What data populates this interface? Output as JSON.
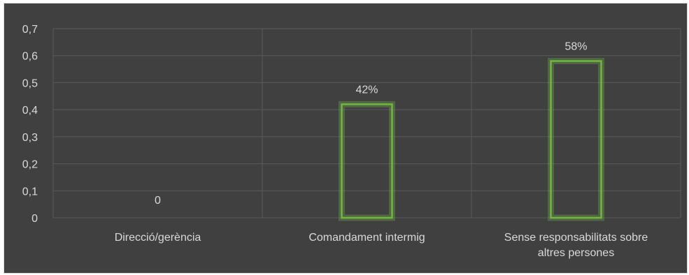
{
  "chart_data": {
    "type": "bar",
    "categories": [
      "Direcció/gerència",
      "Comandament intermig",
      "Sense responsabilitats sobre altres persones"
    ],
    "category_label_lines": [
      [
        "Direcció/gerència"
      ],
      [
        "Comandament intermig"
      ],
      [
        "Sense responsabilitats sobre",
        "altres persones"
      ]
    ],
    "values": [
      0,
      0.42,
      0.58
    ],
    "data_labels": [
      "0",
      "42%",
      "58%"
    ],
    "title": "",
    "xlabel": "",
    "ylabel": "",
    "ylim": [
      0,
      0.7
    ],
    "y_ticks": [
      0,
      0.1,
      0.2,
      0.3,
      0.4,
      0.5,
      0.6,
      0.7
    ],
    "y_tick_labels": [
      "0",
      "0,1",
      "0,2",
      "0,3",
      "0,4",
      "0,5",
      "0,6",
      "0,7"
    ],
    "grid": true,
    "legend": "none",
    "bar_style": "outline",
    "colors": {
      "background": "#404040",
      "bar_outline": "#70b83c",
      "text": "#d9d9d9",
      "grid": "#5a5a5a"
    }
  }
}
